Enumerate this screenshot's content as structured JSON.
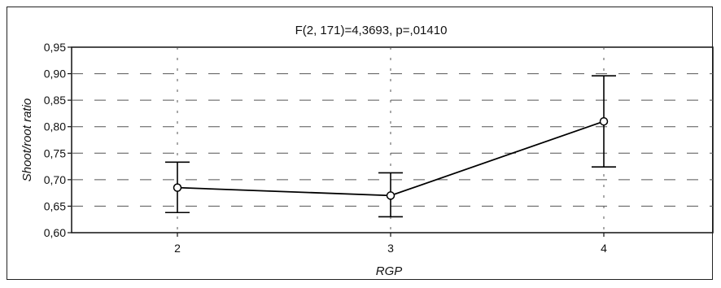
{
  "chart_data": {
    "type": "line",
    "title": "F(2, 171)=4,3693, p=,01410",
    "xlabel": "RGP",
    "ylabel": "Shoot/root ratio",
    "x": [
      "2",
      "3",
      "4"
    ],
    "series": [
      {
        "values": [
          0.685,
          0.67,
          0.81
        ],
        "error_lower": [
          0.638,
          0.63,
          0.724
        ],
        "error_upper": [
          0.733,
          0.713,
          0.896
        ],
        "color": "#000000"
      }
    ],
    "ylim": [
      0.6,
      0.95
    ],
    "yticks": [
      "0,60",
      "0,65",
      "0,70",
      "0,75",
      "0,80",
      "0,85",
      "0,90",
      "0,95"
    ],
    "grid": true,
    "legend": "none"
  }
}
